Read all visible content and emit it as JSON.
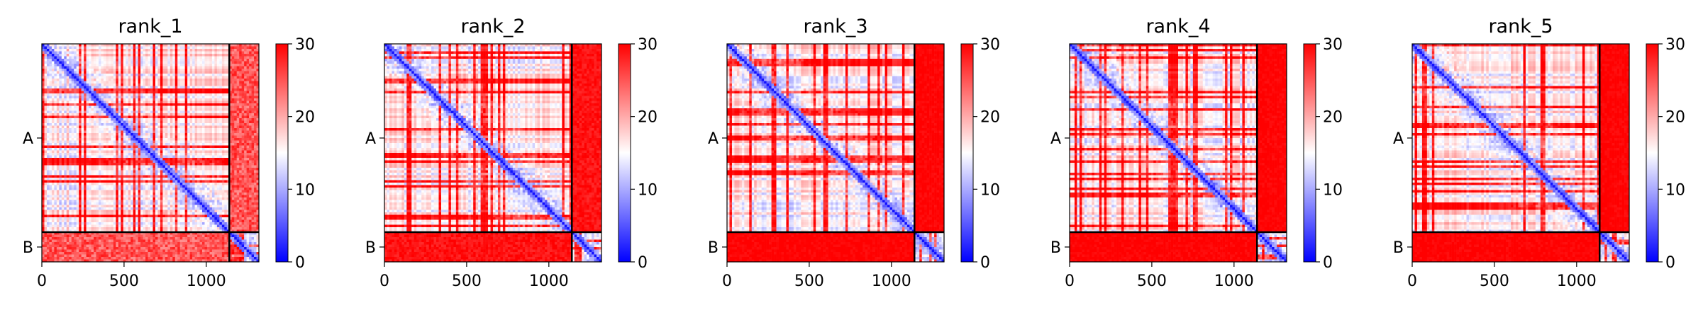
{
  "chart_data": {
    "type": "heatmap",
    "colormap": {
      "name": "bwr",
      "low": "#0000ff",
      "mid": "#ffffff",
      "high": "#ff0000"
    },
    "shared": {
      "x_range": [
        0,
        1320
      ],
      "x_ticks": [
        0,
        500,
        1000
      ],
      "chain_boundary": 1140,
      "chains": [
        {
          "label": "A",
          "start": 0,
          "end": 1140
        },
        {
          "label": "B",
          "start": 1140,
          "end": 1320
        }
      ],
      "colorbar_range": [
        0,
        30
      ],
      "colorbar_ticks": [
        0,
        10,
        20,
        30
      ]
    },
    "panels": [
      {
        "title": "rank_1",
        "inter_chain_mean": 25
      },
      {
        "title": "rank_2",
        "inter_chain_mean": 29
      },
      {
        "title": "rank_3",
        "inter_chain_mean": 30
      },
      {
        "title": "rank_4",
        "inter_chain_mean": 30
      },
      {
        "title": "rank_5",
        "inter_chain_mean": 30
      }
    ]
  }
}
